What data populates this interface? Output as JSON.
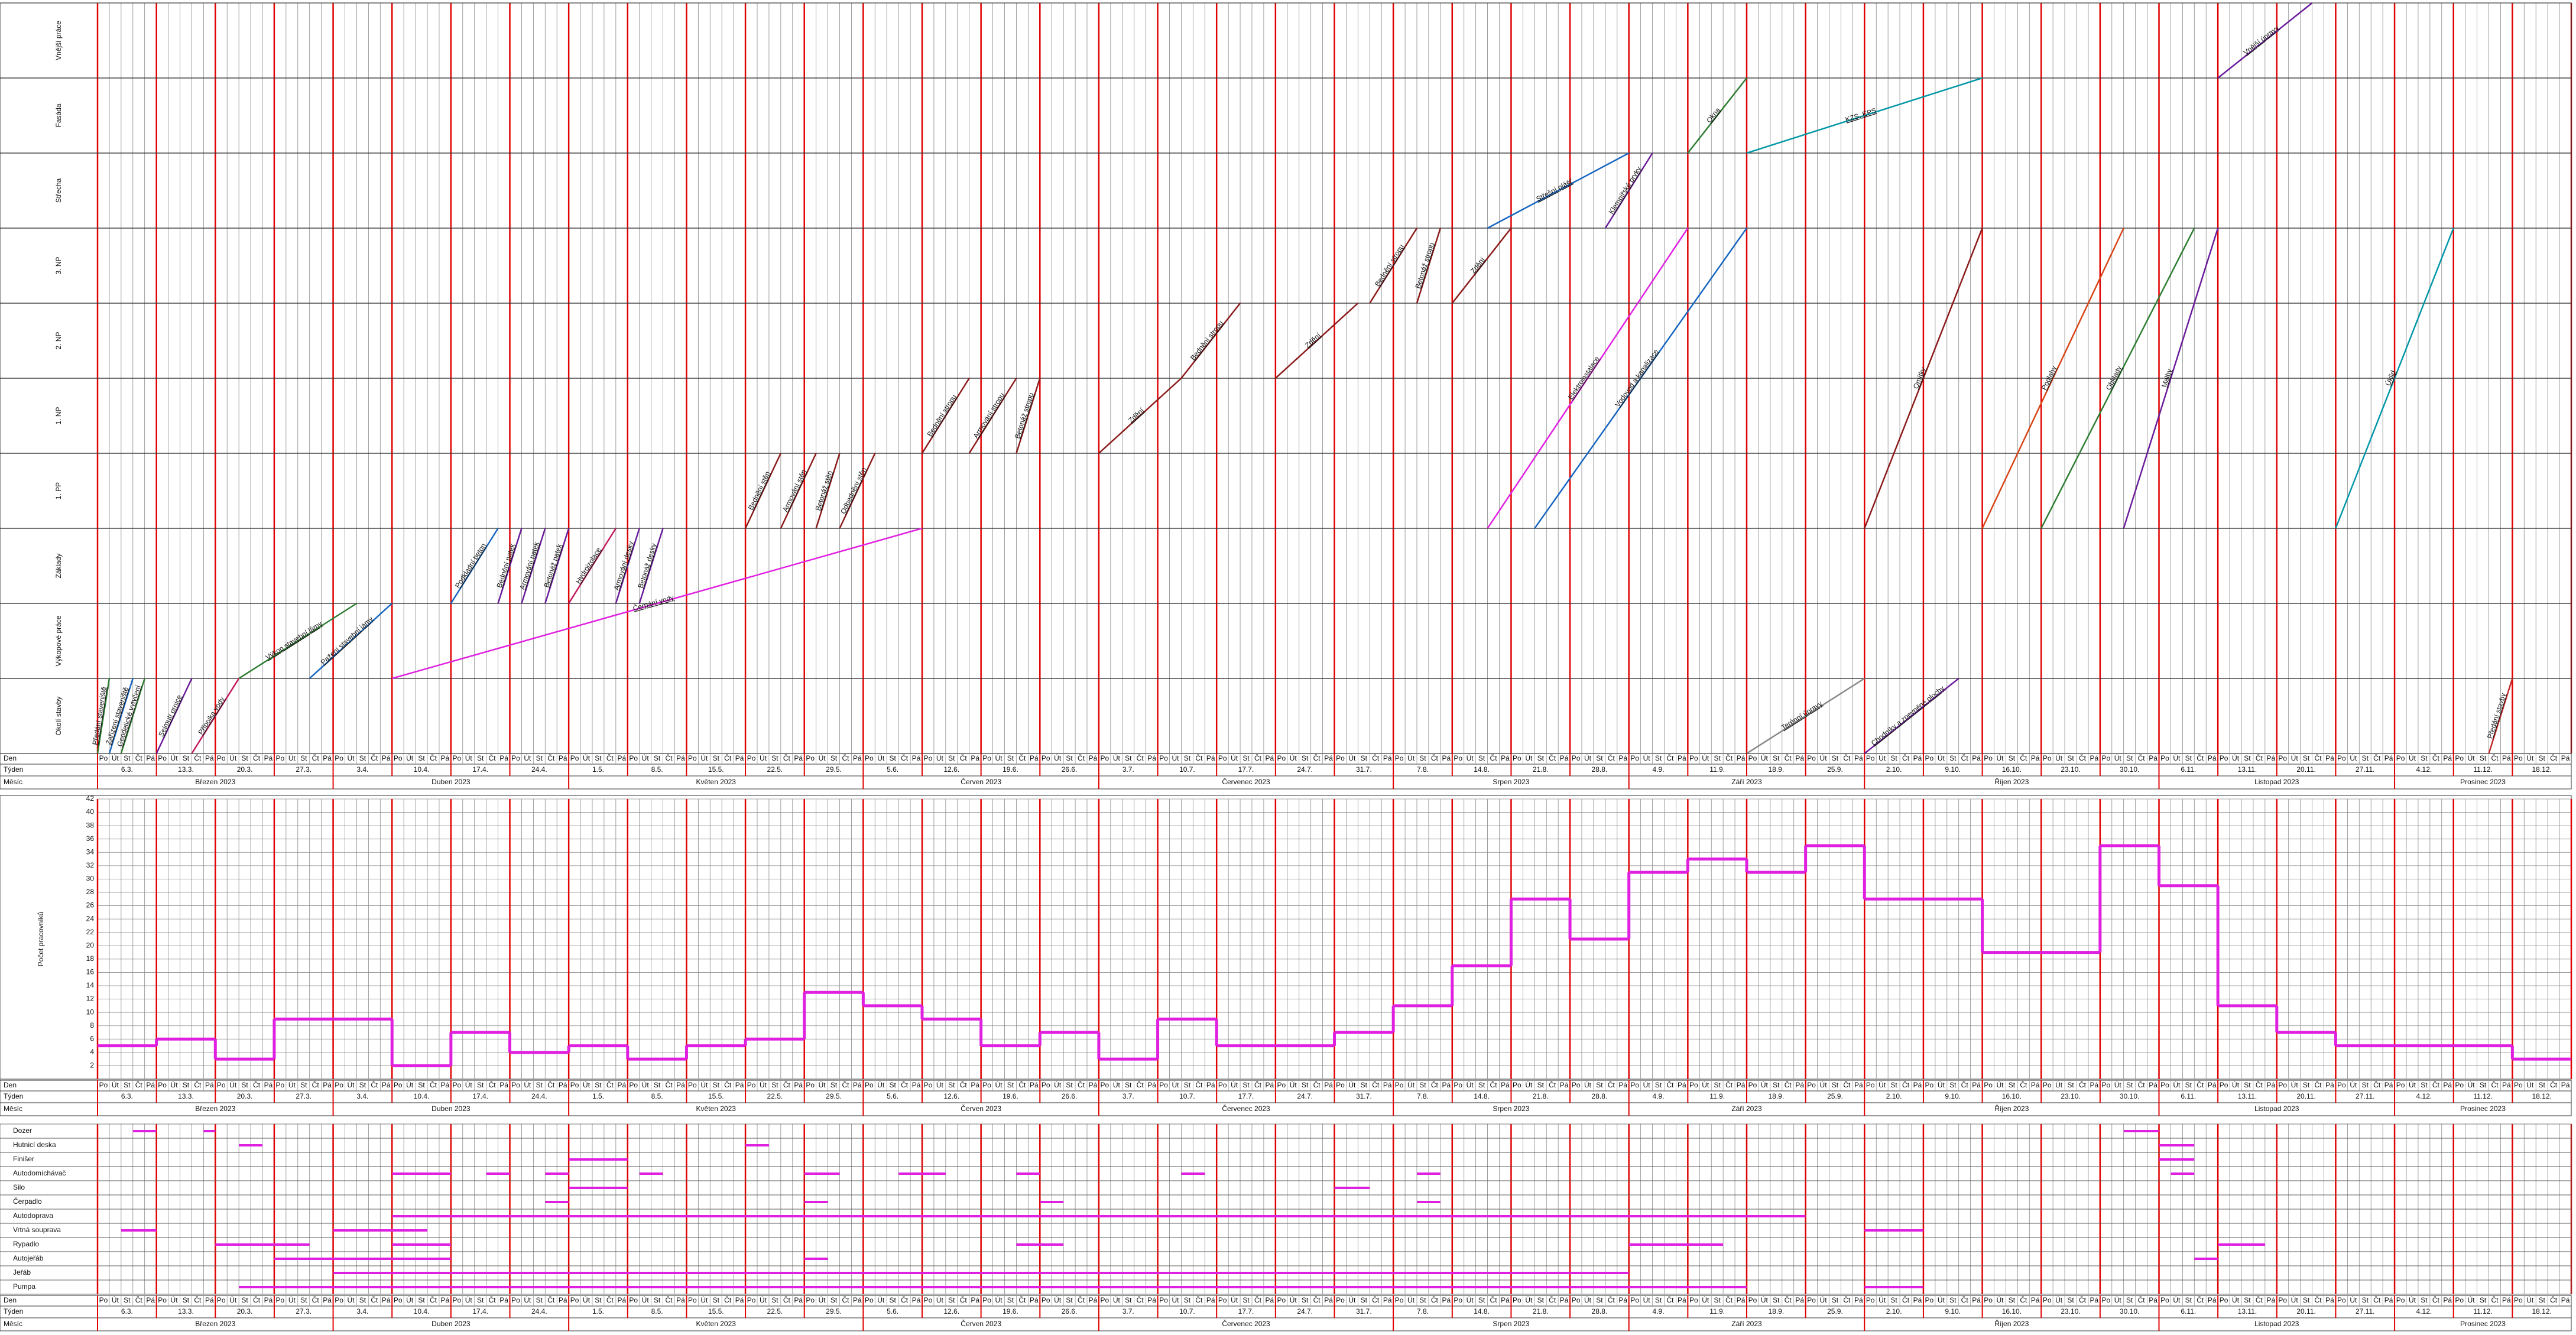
{
  "timeline": {
    "days": [
      "Po",
      "Út",
      "St",
      "Čt",
      "Pá"
    ],
    "weeks": [
      "6.3.",
      "13.3.",
      "20.3.",
      "27.3.",
      "3.4.",
      "10.4.",
      "17.4.",
      "24.4.",
      "1.5.",
      "8.5.",
      "15.5.",
      "22.5.",
      "29.5.",
      "5.6.",
      "12.6.",
      "19.6.",
      "26.6.",
      "3.7.",
      "10.7.",
      "17.7.",
      "24.7.",
      "31.7.",
      "7.8.",
      "14.8.",
      "21.8.",
      "28.8.",
      "4.9.",
      "11.9.",
      "18.9.",
      "25.9.",
      "2.10.",
      "9.10.",
      "16.10.",
      "23.10.",
      "30.10.",
      "6.11.",
      "13.11.",
      "20.11.",
      "27.11.",
      "4.12.",
      "11.12.",
      "18.12."
    ],
    "months": [
      "Březen 2023",
      "Duben 2023",
      "Květen 2023",
      "Červen 2023",
      "Červenec 2023",
      "Srpen 2023",
      "Září 2023",
      "Říjen 2023",
      "Listopad 2023",
      "Prosinec 2023"
    ],
    "row_labels": {
      "day": "Den",
      "week": "Týden",
      "month": "Měsíc"
    }
  },
  "schedule": {
    "zones": [
      "Vnější práce",
      "Fasáda",
      "Střecha",
      "3. NP",
      "2. NP",
      "1. NP",
      "1. PP",
      "Základy",
      "Výkopové práce",
      "Okolí stavby"
    ],
    "tasks": [
      {
        "label": "Předání staveniště",
        "zone_from": 9,
        "zone_to": 9,
        "start": 0,
        "end": 1,
        "color": "#2e7d32"
      },
      {
        "label": "Zařízení staveniště",
        "zone_from": 9,
        "zone_to": 9,
        "start": 1,
        "end": 3,
        "color": "#1565c0"
      },
      {
        "label": "Geodetické vytyčení",
        "zone_from": 9,
        "zone_to": 9,
        "start": 2,
        "end": 4,
        "color": "#2e7d32"
      },
      {
        "label": "Sejmutí ornice",
        "zone_from": 9,
        "zone_to": 9,
        "start": 5,
        "end": 8,
        "color": "#6a1b9a"
      },
      {
        "label": "Přípojka vody",
        "zone_from": 9,
        "zone_to": 9,
        "start": 8,
        "end": 12,
        "color": "#c2185b"
      },
      {
        "label": "Výkop stavební jámy",
        "zone_from": 8,
        "zone_to": 8,
        "start": 12,
        "end": 22,
        "color": "#2e7d32"
      },
      {
        "label": "Pažení stavební jámy",
        "zone_from": 8,
        "zone_to": 8,
        "start": 18,
        "end": 25,
        "color": "#1565c0"
      },
      {
        "label": "Čerpání vody",
        "zone_from": 8,
        "zone_to": 7,
        "start": 25,
        "end": 70,
        "color": "#e020e0"
      },
      {
        "label": "Podkladní beton",
        "zone_from": 7,
        "zone_to": 7,
        "start": 30,
        "end": 34,
        "color": "#1565c0"
      },
      {
        "label": "Bednění patek",
        "zone_from": 7,
        "zone_to": 7,
        "start": 34,
        "end": 36,
        "color": "#6a1b9a"
      },
      {
        "label": "Armování patek",
        "zone_from": 7,
        "zone_to": 7,
        "start": 36,
        "end": 38,
        "color": "#6a1b9a"
      },
      {
        "label": "Betonáž patek",
        "zone_from": 7,
        "zone_to": 7,
        "start": 38,
        "end": 40,
        "color": "#6a1b9a"
      },
      {
        "label": "Hydroizolace",
        "zone_from": 7,
        "zone_to": 7,
        "start": 40,
        "end": 44,
        "color": "#c2185b"
      },
      {
        "label": "Armování desky",
        "zone_from": 7,
        "zone_to": 7,
        "start": 44,
        "end": 46,
        "color": "#6a1b9a"
      },
      {
        "label": "Betonáž desky",
        "zone_from": 7,
        "zone_to": 7,
        "start": 46,
        "end": 48,
        "color": "#6a1b9a"
      },
      {
        "label": "Bednění stěn",
        "zone_from": 6,
        "zone_to": 6,
        "start": 55,
        "end": 58,
        "color": "#8b1a1a"
      },
      {
        "label": "Armování stěn",
        "zone_from": 6,
        "zone_to": 6,
        "start": 58,
        "end": 61,
        "color": "#8b1a1a"
      },
      {
        "label": "Betonáž stěn",
        "zone_from": 6,
        "zone_to": 6,
        "start": 61,
        "end": 63,
        "color": "#8b1a1a"
      },
      {
        "label": "Odbednění stěn",
        "zone_from": 6,
        "zone_to": 6,
        "start": 63,
        "end": 66,
        "color": "#8b1a1a"
      },
      {
        "label": "Bednění stropu",
        "zone_from": 5,
        "zone_to": 5,
        "start": 70,
        "end": 74,
        "color": "#8b1a1a"
      },
      {
        "label": "Armování stropu",
        "zone_from": 5,
        "zone_to": 5,
        "start": 74,
        "end": 78,
        "color": "#8b1a1a"
      },
      {
        "label": "Betonáž stropu",
        "zone_from": 5,
        "zone_to": 5,
        "start": 78,
        "end": 80,
        "color": "#8b1a1a"
      },
      {
        "label": "Zdění",
        "zone_from": 5,
        "zone_to": 5,
        "start": 85,
        "end": 92,
        "color": "#8b1a1a"
      },
      {
        "label": "Bednění stropu",
        "zone_from": 4,
        "zone_to": 4,
        "start": 92,
        "end": 97,
        "color": "#8b1a1a"
      },
      {
        "label": "Zdění",
        "zone_from": 4,
        "zone_to": 4,
        "start": 100,
        "end": 107,
        "color": "#8b1a1a"
      },
      {
        "label": "Bednění stropu",
        "zone_from": 3,
        "zone_to": 3,
        "start": 108,
        "end": 112,
        "color": "#8b1a1a"
      },
      {
        "label": "Betonáž stropu",
        "zone_from": 3,
        "zone_to": 3,
        "start": 112,
        "end": 114,
        "color": "#8b1a1a"
      },
      {
        "label": "Zdění",
        "zone_from": 3,
        "zone_to": 3,
        "start": 115,
        "end": 120,
        "color": "#8b1a1a"
      },
      {
        "label": "Střešní plášť",
        "zone_from": 2,
        "zone_to": 2,
        "start": 118,
        "end": 130,
        "color": "#1565c0"
      },
      {
        "label": "Klempířské prvky",
        "zone_from": 2,
        "zone_to": 2,
        "start": 128,
        "end": 132,
        "color": "#6a1b9a"
      },
      {
        "label": "Elektroinstalace",
        "zone_from": 6,
        "zone_to": 3,
        "start": 118,
        "end": 135,
        "color": "#e020e0"
      },
      {
        "label": "Vodovod a kanalizace",
        "zone_from": 6,
        "zone_to": 3,
        "start": 122,
        "end": 140,
        "color": "#1565c0"
      },
      {
        "label": "Okna",
        "zone_from": 1,
        "zone_to": 1,
        "start": 135,
        "end": 140,
        "color": "#2e7d32"
      },
      {
        "label": "KZS, EPS",
        "zone_from": 1,
        "zone_to": 1,
        "start": 140,
        "end": 160,
        "color": "#0097a7"
      },
      {
        "label": "Omítky",
        "zone_from": 6,
        "zone_to": 3,
        "start": 150,
        "end": 160,
        "color": "#8b1a1a"
      },
      {
        "label": "Podlahy",
        "zone_from": 6,
        "zone_to": 3,
        "start": 160,
        "end": 172,
        "color": "#d84315"
      },
      {
        "label": "Obklady",
        "zone_from": 6,
        "zone_to": 3,
        "start": 165,
        "end": 178,
        "color": "#2e7d32"
      },
      {
        "label": "Malby",
        "zone_from": 6,
        "zone_to": 3,
        "start": 172,
        "end": 180,
        "color": "#6a1b9a"
      },
      {
        "label": "Úklid",
        "zone_from": 6,
        "zone_to": 3,
        "start": 190,
        "end": 200,
        "color": "#0097a7"
      },
      {
        "label": "Terénní úpravy",
        "zone_from": 9,
        "zone_to": 9,
        "start": 140,
        "end": 150,
        "color": "#888888"
      },
      {
        "label": "Chodníky a zpevněné plochy",
        "zone_from": 9,
        "zone_to": 9,
        "start": 150,
        "end": 158,
        "color": "#6a1b9a"
      },
      {
        "label": "Vnější úpravy",
        "zone_from": 0,
        "zone_to": 0,
        "start": 180,
        "end": 188,
        "color": "#6a1b9a"
      },
      {
        "label": "Předání stavby",
        "zone_from": 9,
        "zone_to": 9,
        "start": 203,
        "end": 205,
        "color": "#c62828"
      }
    ]
  },
  "chart_data": {
    "type": "step",
    "y_label": "Počet pracovníků",
    "color": "#e020e0",
    "values": [
      5,
      6,
      3,
      9,
      9,
      2,
      7,
      4,
      5,
      3,
      5,
      6,
      13,
      11,
      9,
      5,
      7,
      3,
      9,
      5,
      5,
      7,
      11,
      17,
      27,
      21,
      31,
      33,
      31,
      35,
      27,
      27,
      19,
      19,
      35,
      29,
      11,
      7,
      5,
      5,
      5,
      3
    ],
    "ylim": [
      0,
      42
    ],
    "yticks": [
      2,
      4,
      6,
      8,
      10,
      12,
      14,
      16,
      18,
      20,
      22,
      24,
      26,
      28,
      30,
      32,
      34,
      36,
      38,
      40,
      42
    ]
  },
  "machinery": {
    "color": "#e020e0",
    "rows": [
      {
        "name": "Dozer",
        "segments": [
          [
            3,
            5
          ],
          [
            9,
            10
          ],
          [
            172,
            175
          ]
        ]
      },
      {
        "name": "Hutnicí deska",
        "segments": [
          [
            12,
            14
          ],
          [
            55,
            57
          ],
          [
            175,
            178
          ]
        ]
      },
      {
        "name": "Finišer",
        "segments": [
          [
            40,
            45
          ],
          [
            175,
            178
          ]
        ]
      },
      {
        "name": "Autodomíchávač",
        "segments": [
          [
            25,
            30
          ],
          [
            33,
            35
          ],
          [
            38,
            40
          ],
          [
            46,
            48
          ],
          [
            60,
            63
          ],
          [
            68,
            72
          ],
          [
            78,
            80
          ],
          [
            92,
            94
          ],
          [
            112,
            114
          ],
          [
            176,
            178
          ]
        ]
      },
      {
        "name": "Silo",
        "segments": [
          [
            40,
            45
          ],
          [
            105,
            108
          ]
        ]
      },
      {
        "name": "Čerpadlo",
        "segments": [
          [
            38,
            40
          ],
          [
            60,
            62
          ],
          [
            80,
            82
          ],
          [
            112,
            114
          ]
        ]
      },
      {
        "name": "Autodoprava",
        "segments": [
          [
            25,
            145
          ]
        ]
      },
      {
        "name": "Vrtná souprava",
        "segments": [
          [
            2,
            5
          ],
          [
            20,
            28
          ],
          [
            150,
            155
          ]
        ]
      },
      {
        "name": "Rypadlo",
        "segments": [
          [
            10,
            18
          ],
          [
            25,
            30
          ],
          [
            78,
            82
          ],
          [
            130,
            138
          ],
          [
            180,
            184
          ]
        ]
      },
      {
        "name": "Autojeřáb",
        "segments": [
          [
            15,
            30
          ],
          [
            60,
            62
          ],
          [
            178,
            180
          ]
        ]
      },
      {
        "name": "Jeřáb",
        "segments": [
          [
            20,
            130
          ]
        ]
      },
      {
        "name": "Pumpa",
        "segments": [
          [
            12,
            140
          ],
          [
            150,
            155
          ]
        ]
      }
    ]
  }
}
